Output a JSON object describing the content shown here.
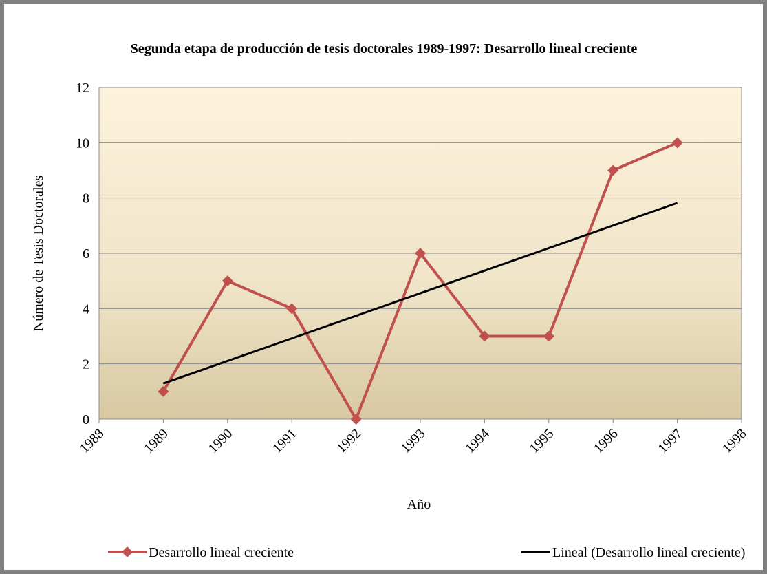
{
  "chart_data": {
    "type": "line",
    "title": "Segunda etapa de producción de tesis doctorales 1989-1997: Desarrollo lineal creciente",
    "x_label": "Año",
    "y_label": "Número de Tesis Doctorales",
    "series": [
      {
        "name": "Desarrollo lineal creciente",
        "color": "#c0504d",
        "marker": "diamond",
        "x": [
          1989,
          1990,
          1991,
          1992,
          1993,
          1994,
          1995,
          1996,
          1997
        ],
        "values": [
          1,
          5,
          4,
          0,
          6,
          3,
          3,
          9,
          10
        ]
      },
      {
        "name": "Lineal (Desarrollo lineal creciente)",
        "color": "#000000",
        "x": [
          1989,
          1997
        ],
        "values": [
          1.29,
          7.82
        ]
      }
    ],
    "xlim": [
      1988,
      1998
    ],
    "xticks": [
      1988,
      1989,
      1990,
      1991,
      1992,
      1993,
      1994,
      1995,
      1996,
      1997,
      1998
    ],
    "ylim": [
      0,
      12
    ],
    "yticks": [
      0,
      2,
      4,
      6,
      8,
      10,
      12
    ],
    "grid": true,
    "legend": "bottom"
  }
}
